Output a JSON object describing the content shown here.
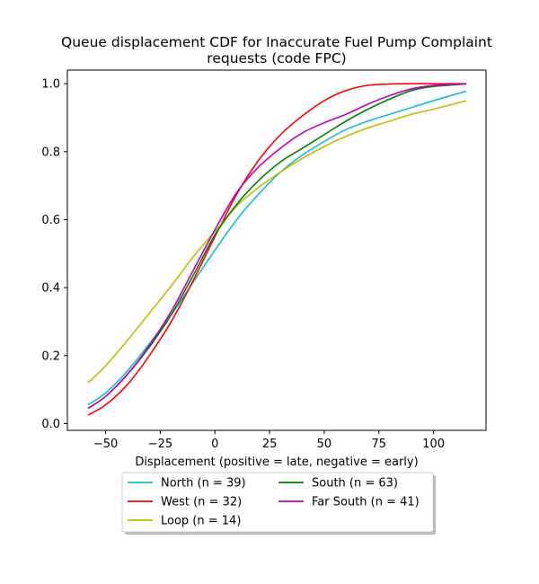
{
  "chart_data": {
    "type": "line",
    "title_lines": [
      "Queue displacement CDF for Inaccurate Fuel Pump Complaint",
      "requests (code FPC)"
    ],
    "xlabel": "Displacement (positive = late, negative = early)",
    "ylabel": "",
    "xlim": [
      -67.5,
      124
    ],
    "ylim": [
      -0.02,
      1.04
    ],
    "xticks": [
      -50,
      -25,
      0,
      25,
      50,
      75,
      100
    ],
    "xtick_labels": [
      "−50",
      "−25",
      "0",
      "25",
      "50",
      "75",
      "100"
    ],
    "yticks": [
      0.0,
      0.2,
      0.4,
      0.6,
      0.8,
      1.0
    ],
    "ytick_labels": [
      "0.0",
      "0.2",
      "0.4",
      "0.6",
      "0.8",
      "1.0"
    ],
    "grid": false,
    "legend_placement": "below plot, two columns, shadowed box",
    "x": [
      -58,
      -50,
      -40,
      -30,
      -20,
      -10,
      0,
      10,
      20,
      30,
      40,
      50,
      60,
      70,
      80,
      90,
      100,
      115
    ],
    "series": [
      {
        "name": "North (n = 39)",
        "color": "#17becf",
        "values": [
          0.055,
          0.09,
          0.155,
          0.235,
          0.32,
          0.415,
          0.51,
          0.6,
          0.675,
          0.74,
          0.79,
          0.83,
          0.865,
          0.89,
          0.91,
          0.93,
          0.95,
          0.978
        ]
      },
      {
        "name": "West (n = 32)",
        "color": "#ff0000",
        "values": [
          0.025,
          0.055,
          0.115,
          0.2,
          0.3,
          0.42,
          0.55,
          0.675,
          0.775,
          0.85,
          0.905,
          0.95,
          0.98,
          0.995,
          0.999,
          1.0,
          1.0,
          1.0
        ]
      },
      {
        "name": "Loop (n = 14)",
        "color": "#bfbf00",
        "values": [
          0.12,
          0.17,
          0.245,
          0.325,
          0.405,
          0.49,
          0.565,
          0.64,
          0.695,
          0.74,
          0.78,
          0.815,
          0.845,
          0.87,
          0.89,
          0.91,
          0.925,
          0.95
        ]
      },
      {
        "name": "South (n = 63)",
        "color": "#008000",
        "values": [
          0.045,
          0.08,
          0.145,
          0.225,
          0.32,
          0.435,
          0.555,
          0.645,
          0.715,
          0.77,
          0.81,
          0.85,
          0.89,
          0.925,
          0.955,
          0.98,
          0.992,
          0.999
        ]
      },
      {
        "name": "Far South (n = 41)",
        "color": "#bf00bf",
        "values": [
          0.045,
          0.08,
          0.145,
          0.23,
          0.33,
          0.45,
          0.57,
          0.68,
          0.755,
          0.81,
          0.855,
          0.885,
          0.91,
          0.94,
          0.965,
          0.985,
          0.995,
          1.0
        ]
      }
    ]
  }
}
